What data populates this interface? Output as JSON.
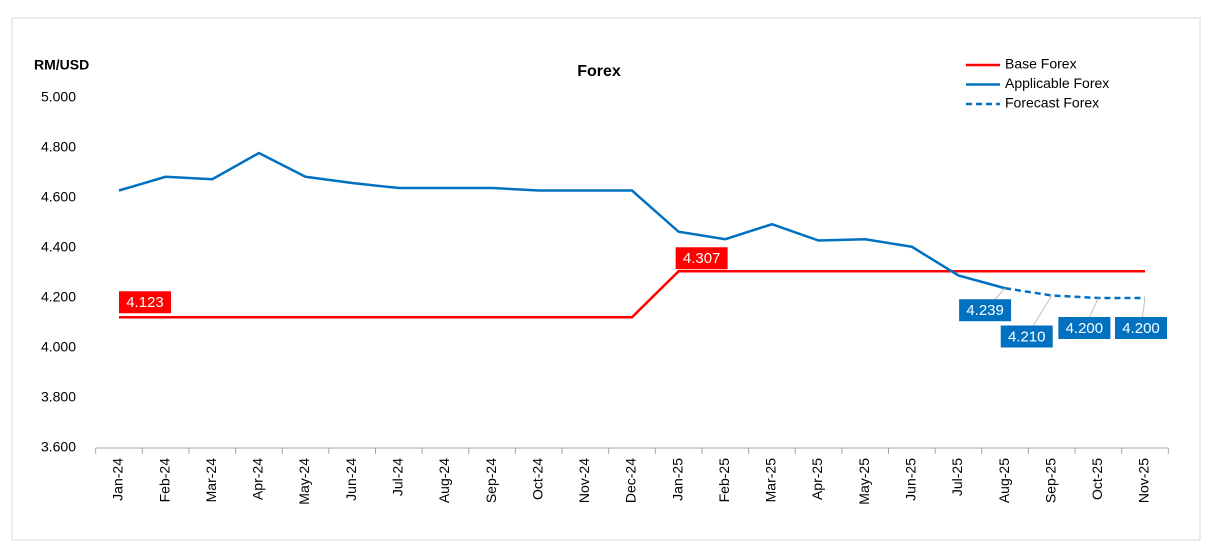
{
  "chart_data": {
    "type": "line",
    "title": "Forex",
    "y_axis_label": "RM/USD",
    "categories": [
      "Jan-24",
      "Feb-24",
      "Mar-24",
      "Apr-24",
      "May-24",
      "Jun-24",
      "Jul-24",
      "Aug-24",
      "Sep-24",
      "Oct-24",
      "Nov-24",
      "Dec-24",
      "Jan-25",
      "Feb-25",
      "Mar-25",
      "Apr-25",
      "May-25",
      "Jun-25",
      "Jul-25",
      "Aug-25",
      "Sep-25",
      "Oct-25",
      "Nov-25"
    ],
    "series": [
      {
        "name": "Base Forex",
        "color": "#ff0000",
        "dash": false,
        "values": [
          4.123,
          4.123,
          4.123,
          4.123,
          4.123,
          4.123,
          4.123,
          4.123,
          4.123,
          4.123,
          4.123,
          4.123,
          4.307,
          4.307,
          4.307,
          4.307,
          4.307,
          4.307,
          4.307,
          4.307,
          4.307,
          4.307,
          4.307
        ],
        "value_labels": [
          "4.123",
          null,
          null,
          null,
          null,
          null,
          null,
          null,
          null,
          null,
          null,
          null,
          "4.307",
          null,
          null,
          null,
          null,
          null,
          null,
          null,
          null,
          null,
          null
        ]
      },
      {
        "name": "Applicable Forex",
        "color": "#0070c0",
        "dash": false,
        "values": [
          4.63,
          4.685,
          4.675,
          4.78,
          4.685,
          4.66,
          4.64,
          4.64,
          4.64,
          4.63,
          4.63,
          4.63,
          4.465,
          4.435,
          4.495,
          4.43,
          4.435,
          4.405,
          4.29,
          4.239,
          null,
          null,
          null
        ],
        "value_labels": [
          null,
          null,
          null,
          null,
          null,
          null,
          null,
          null,
          null,
          null,
          null,
          null,
          null,
          null,
          null,
          null,
          null,
          null,
          null,
          "4.239",
          null,
          null,
          null
        ]
      },
      {
        "name": "Forecast Forex",
        "color": "#0070c0",
        "dash": true,
        "values": [
          null,
          null,
          null,
          null,
          null,
          null,
          null,
          null,
          null,
          null,
          null,
          null,
          null,
          null,
          null,
          null,
          null,
          null,
          null,
          4.239,
          4.21,
          4.2,
          4.2
        ],
        "value_labels": [
          null,
          null,
          null,
          null,
          null,
          null,
          null,
          null,
          null,
          null,
          null,
          null,
          null,
          null,
          null,
          null,
          null,
          null,
          null,
          null,
          "4.210",
          "4.200",
          "4.200"
        ]
      }
    ],
    "ylim": [
      3.6,
      5.0
    ],
    "yticks": [
      {
        "value": 3.6,
        "label": "3.600"
      },
      {
        "value": 3.8,
        "label": "3.800"
      },
      {
        "value": 4.0,
        "label": "4.000"
      },
      {
        "value": 4.2,
        "label": "4.200"
      },
      {
        "value": 4.4,
        "label": "4.400"
      },
      {
        "value": 4.6,
        "label": "4.600"
      },
      {
        "value": 4.8,
        "label": "4.800"
      },
      {
        "value": 5.0,
        "label": "5.000"
      }
    ],
    "grid": false,
    "legend": "top-right"
  }
}
